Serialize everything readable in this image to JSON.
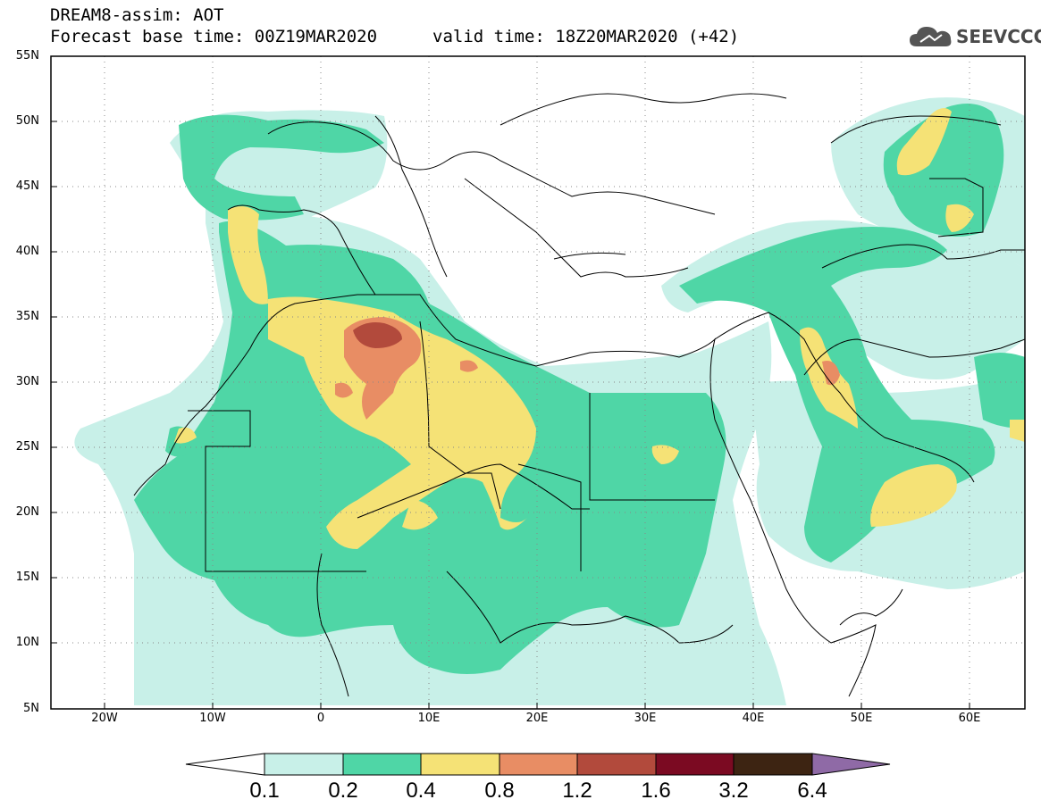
{
  "header": {
    "line1": "DREAM8-assim: AOT",
    "base_time": "Forecast base time: 00Z19MAR2020",
    "valid_time": "valid time: 18Z20MAR2020 (+42)"
  },
  "logo": {
    "icon": "cloud-icon",
    "text": "SEEVCCC"
  },
  "axes": {
    "lat_labels": [
      "55N",
      "50N",
      "45N",
      "40N",
      "35N",
      "30N",
      "25N",
      "20N",
      "15N",
      "10N",
      "5N"
    ],
    "lon_labels": [
      "20W",
      "10W",
      "0",
      "10E",
      "20E",
      "30E",
      "40E",
      "50E",
      "60E"
    ],
    "lat_range": [
      5,
      55
    ],
    "lon_range": [
      -25,
      65
    ]
  },
  "colorbar": {
    "labels": [
      "0.1",
      "0.2",
      "0.4",
      "0.8",
      "1.2",
      "1.6",
      "3.2",
      "6.4"
    ],
    "colors": [
      "#ffffff",
      "#c8f0e8",
      "#4fd6a6",
      "#f5e276",
      "#e88d64",
      "#b24a3c",
      "#7b0a22",
      "#3d2412",
      "#8f6aa6"
    ]
  },
  "map": {
    "field": "Aerosol optical thickness",
    "grid": "dotted",
    "fill_colors": {
      "level_0_1": "#c8f0e8",
      "level_0_2": "#4fd6a6",
      "level_0_4": "#f5e276",
      "level_0_8": "#e88d64",
      "level_1_2": "#b24a3c"
    }
  }
}
